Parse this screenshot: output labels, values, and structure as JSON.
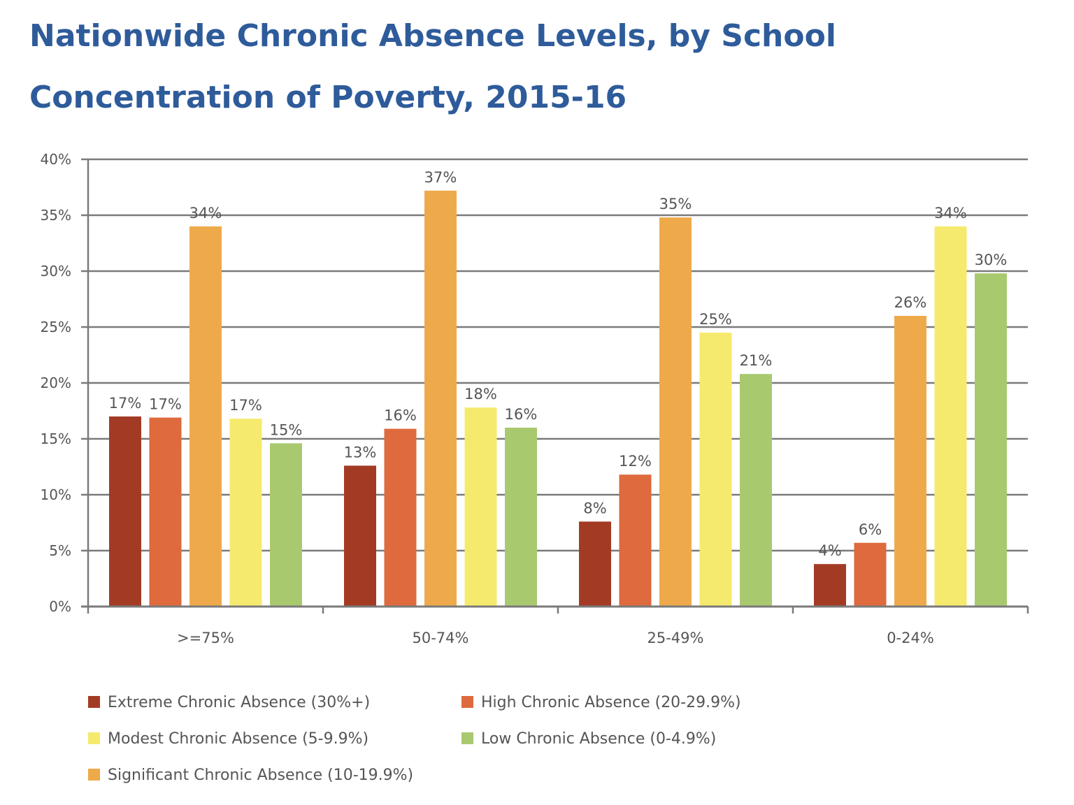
{
  "chart_data": {
    "type": "bar",
    "title": "Nationwide Chronic Absence Levels, by School Concentration of Poverty, 2015-16",
    "xlabel": "",
    "ylabel": "",
    "ylim": [
      0,
      40
    ],
    "y_ticks": [
      "0%",
      "5%",
      "10%",
      "15%",
      "20%",
      "25%",
      "30%",
      "35%",
      "40%"
    ],
    "grid": true,
    "legend_position": "bottom",
    "categories": [
      ">=75%",
      "50-74%",
      "25-49%",
      "0-24%"
    ],
    "series": [
      {
        "name": "Extreme Chronic Absence (30%+)",
        "color": "#a33b24",
        "values": [
          17,
          12.6,
          7.6,
          3.8
        ],
        "labels": [
          "17%",
          "13%",
          "8%",
          "4%"
        ]
      },
      {
        "name": "High Chronic Absence (20-29.9%)",
        "color": "#de6a3d",
        "values": [
          16.9,
          15.9,
          11.8,
          5.7
        ],
        "labels": [
          "17%",
          "16%",
          "12%",
          "6%"
        ]
      },
      {
        "name": "Significant Chronic Absence (10-19.9%)",
        "color": "#eeaa4a",
        "values": [
          34,
          37.2,
          34.8,
          26
        ],
        "labels": [
          "34%",
          "37%",
          "35%",
          "26%"
        ]
      },
      {
        "name": "Modest Chronic Absence (5-9.9%)",
        "color": "#f6ea6e",
        "values": [
          16.8,
          17.8,
          24.5,
          34
        ],
        "labels": [
          "17%",
          "18%",
          "25%",
          "34%"
        ]
      },
      {
        "name": "Low Chronic Absence (0-4.9%)",
        "color": "#a9c96f",
        "values": [
          14.6,
          16,
          20.8,
          29.8
        ],
        "labels": [
          "15%",
          "16%",
          "21%",
          "30%"
        ]
      }
    ],
    "legend_order": [
      0,
      1,
      3,
      4,
      2
    ]
  }
}
